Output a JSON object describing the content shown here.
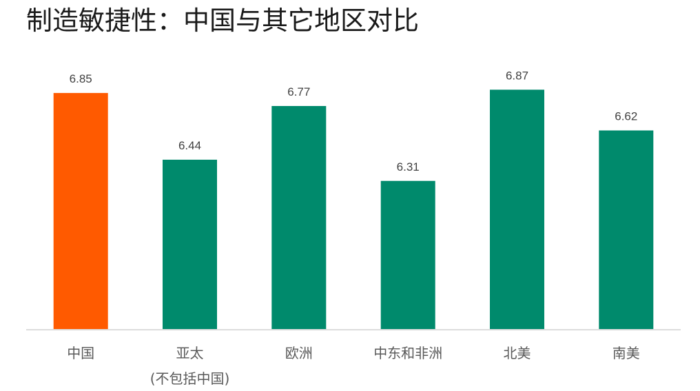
{
  "colors": {
    "highlight": "#FF5A00",
    "bar": "#008A6C",
    "baseline": "#D0D0D0"
  },
  "chart_data": {
    "type": "bar",
    "title": "制造敏捷性：中国与其它地区对比",
    "categories": [
      [
        "中国"
      ],
      [
        "亚太",
        "(不包括中国)"
      ],
      [
        "欧洲"
      ],
      [
        "中东和非洲"
      ],
      [
        "北美"
      ],
      [
        "南美"
      ]
    ],
    "values": [
      6.85,
      6.44,
      6.77,
      6.31,
      6.87,
      6.62
    ],
    "value_labels": [
      "6.85",
      "6.44",
      "6.77",
      "6.31",
      "6.87",
      "6.62"
    ],
    "highlight_index": 0,
    "ylim": [
      5.4,
      6.9
    ],
    "xlabel": "",
    "ylabel": "",
    "grid": false,
    "legend": "none"
  }
}
